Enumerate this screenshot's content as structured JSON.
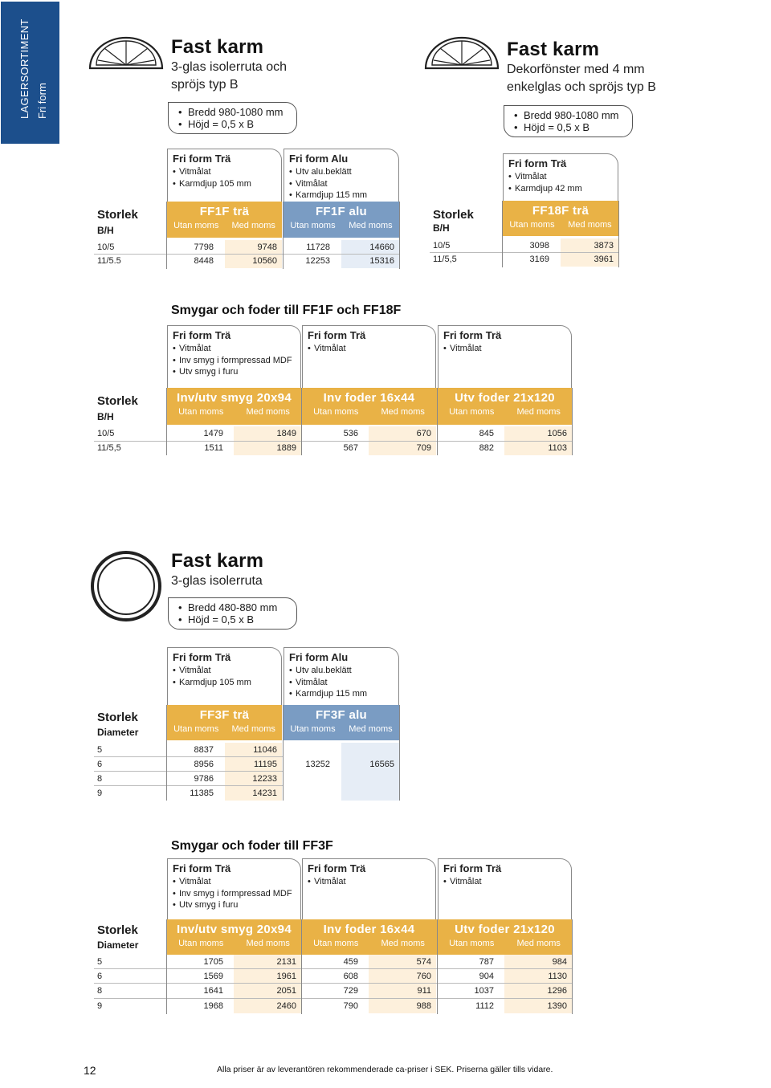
{
  "sidetab": {
    "line1": "LAGERSORTIMENT",
    "line2": "Fri form"
  },
  "product1": {
    "title": "Fast karm",
    "subtitle1": "3-glas isolerruta och",
    "subtitle2": "spröjs typ B",
    "bullets": [
      "Bredd 980-1080 mm",
      "Höjd = 0,5 x B"
    ],
    "icon": "half-round-window-icon",
    "card_tra": {
      "title": "Fri form Trä",
      "lines": [
        "Vitmålat",
        "Karmdjup 105 mm"
      ]
    },
    "card_alu": {
      "title": "Fri form Alu",
      "lines": [
        "Utv alu.beklätt",
        "Vitmålat",
        "Karmdjup 115 mm"
      ]
    },
    "storlek": "Storlek",
    "bh": "B/H",
    "col_tra": "FF1F trä",
    "col_alu": "FF1F alu",
    "utan": "Utan moms",
    "med": "Med moms",
    "rows": [
      {
        "size": "10/5",
        "tra_utan": "7798",
        "tra_med": "9748",
        "alu_utan": "11728",
        "alu_med": "14660"
      },
      {
        "size": "11/5.5",
        "tra_utan": "8448",
        "tra_med": "10560",
        "alu_utan": "12253",
        "alu_med": "15316"
      }
    ]
  },
  "product2": {
    "title": "Fast karm",
    "subtitle1": "Dekorfönster med 4 mm",
    "subtitle2": "enkelglas och spröjs typ B",
    "bullets": [
      "Bredd 980-1080 mm",
      "Höjd = 0,5 x B"
    ],
    "icon": "half-round-window-icon",
    "card_tra": {
      "title": "Fri form Trä",
      "lines": [
        "Vitmålat",
        "Karmdjup 42 mm"
      ]
    },
    "storlek": "Storlek",
    "bh": "B/H",
    "col_tra": "FF18F trä",
    "utan": "Utan moms",
    "med": "Med moms",
    "rows": [
      {
        "size": "10/5",
        "utan": "3098",
        "med": "3873"
      },
      {
        "size": "11/5,5",
        "utan": "3169",
        "med": "3961"
      }
    ]
  },
  "smygar1": {
    "title": "Smygar och foder till FF1F och FF18F",
    "card1": {
      "title": "Fri form Trä",
      "lines": [
        "Vitmålat",
        "Inv smyg i formpressad MDF",
        "Utv smyg i furu"
      ]
    },
    "card2": {
      "title": "Fri form Trä",
      "lines": [
        "Vitmålat"
      ]
    },
    "card3": {
      "title": "Fri form Trä",
      "lines": [
        "Vitmålat"
      ]
    },
    "storlek": "Storlek",
    "bh": "B/H",
    "col1": "Inv/utv smyg 20x94",
    "col2": "Inv foder 16x44",
    "col3": "Utv foder 21x120",
    "utan": "Utan moms",
    "med": "Med moms",
    "rows": [
      {
        "size": "10/5",
        "v": [
          "1479",
          "1849",
          "536",
          "670",
          "845",
          "1056"
        ]
      },
      {
        "size": "11/5,5",
        "v": [
          "1511",
          "1889",
          "567",
          "709",
          "882",
          "1103"
        ]
      }
    ]
  },
  "product3": {
    "title": "Fast karm",
    "subtitle1": "3-glas isolerruta",
    "bullets": [
      "Bredd 480-880 mm",
      "Höjd = 0,5 x B"
    ],
    "icon": "round-window-icon",
    "card_tra": {
      "title": "Fri form Trä",
      "lines": [
        "Vitmålat",
        "Karmdjup 105 mm"
      ]
    },
    "card_alu": {
      "title": "Fri form Alu",
      "lines": [
        "Utv alu.beklätt",
        "Vitmålat",
        "Karmdjup 115 mm"
      ]
    },
    "storlek": "Storlek",
    "diameter": "Diameter",
    "col_tra": "FF3F trä",
    "col_alu": "FF3F alu",
    "utan": "Utan moms",
    "med": "Med moms",
    "rows": [
      {
        "size": "5",
        "tra_utan": "8837",
        "tra_med": "11046"
      },
      {
        "size": "6",
        "tra_utan": "8956",
        "tra_med": "11195"
      },
      {
        "size": "8",
        "tra_utan": "9786",
        "tra_med": "12233"
      },
      {
        "size": "9",
        "tra_utan": "11385",
        "tra_med": "14231"
      }
    ],
    "alu_utan": "13252",
    "alu_med": "16565"
  },
  "smygar2": {
    "title": "Smygar och foder till FF3F",
    "card1": {
      "title": "Fri form Trä",
      "lines": [
        "Vitmålat",
        "Inv smyg i formpressad MDF",
        "Utv smyg i furu"
      ]
    },
    "card2": {
      "title": "Fri form Trä",
      "lines": [
        "Vitmålat"
      ]
    },
    "card3": {
      "title": "Fri form Trä",
      "lines": [
        "Vitmålat"
      ]
    },
    "storlek": "Storlek",
    "diameter": "Diameter",
    "col1": "Inv/utv smyg 20x94",
    "col2": "Inv foder 16x44",
    "col3": "Utv foder 21x120",
    "utan": "Utan moms",
    "med": "Med moms",
    "rows": [
      {
        "size": "5",
        "v": [
          "1705",
          "2131",
          "459",
          "574",
          "787",
          "984"
        ]
      },
      {
        "size": "6",
        "v": [
          "1569",
          "1961",
          "608",
          "760",
          "904",
          "1130"
        ]
      },
      {
        "size": "8",
        "v": [
          "1641",
          "2051",
          "729",
          "911",
          "1037",
          "1296"
        ]
      },
      {
        "size": "9",
        "v": [
          "1968",
          "2460",
          "790",
          "988",
          "1112",
          "1390"
        ]
      }
    ]
  },
  "footer": {
    "page": "12",
    "note": "Alla priser är av leverantören rekommenderade ca-priser i SEK. Priserna gäller tills vidare."
  },
  "colors": {
    "blue_tab": "#1c4f8c",
    "gold": "#e9b246",
    "alu_blue": "#7a9cc3",
    "tint_gold": "#fdf0dc",
    "tint_blue": "#e6edf6"
  }
}
